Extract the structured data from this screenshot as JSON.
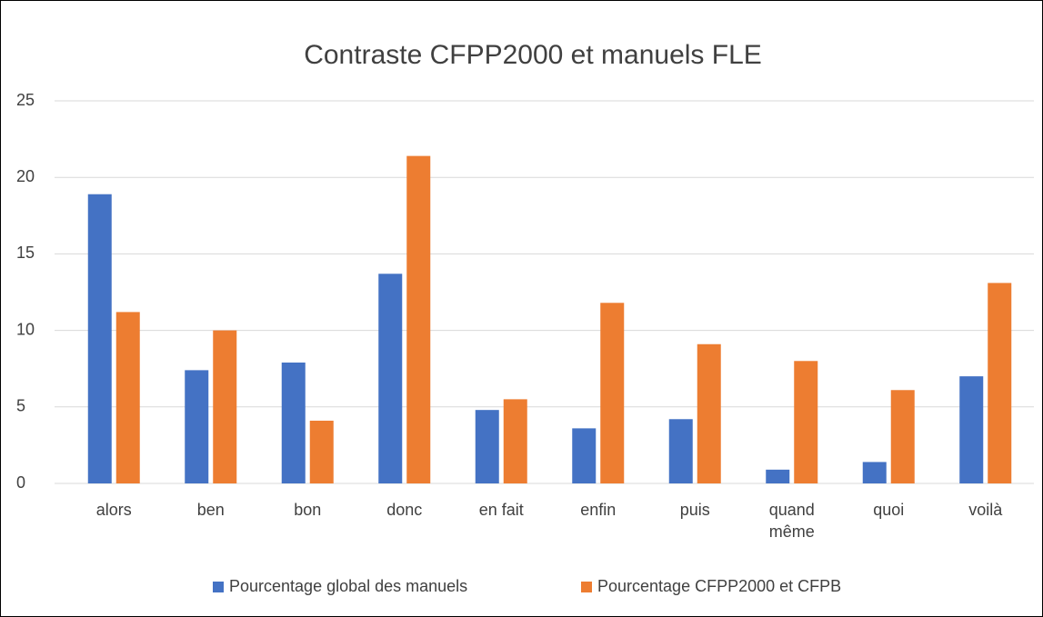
{
  "chart_data": {
    "type": "bar",
    "title": "Contraste CFPP2000 et manuels FLE",
    "categories": [
      "alors",
      "ben",
      "bon",
      "donc",
      "en fait",
      "enfin",
      "puis",
      "quand même",
      "quoi",
      "voilà"
    ],
    "series": [
      {
        "name": "Pourcentage global des manuels",
        "color": "#4472c4",
        "values": [
          18.9,
          7.4,
          7.9,
          13.7,
          4.8,
          3.6,
          4.2,
          0.9,
          1.4,
          7.0
        ]
      },
      {
        "name": "Pourcentage CFPP2000 et CFPB",
        "color": "#ed7d31",
        "values": [
          11.2,
          10.0,
          4.1,
          21.4,
          5.5,
          11.8,
          9.1,
          8.0,
          6.1,
          13.1
        ]
      }
    ],
    "ylim": [
      0,
      25
    ],
    "yticks": [
      0,
      5,
      10,
      15,
      20,
      25
    ],
    "grid": true,
    "legend": "bottom"
  }
}
